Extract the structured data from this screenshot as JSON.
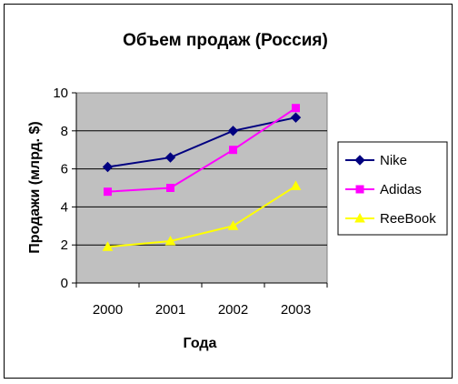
{
  "chart_data": {
    "type": "line",
    "title": "Объем продаж (Россия)",
    "xlabel": "Года",
    "ylabel": "Продажи (млрд. $)",
    "categories": [
      "2000",
      "2001",
      "2002",
      "2003"
    ],
    "ylim": [
      0,
      10
    ],
    "yticks": [
      "0",
      "2",
      "4",
      "6",
      "8",
      "10"
    ],
    "grid": true,
    "legend_position": "right",
    "plot_background": "#c0c0c0",
    "series": [
      {
        "name": "Nike",
        "color": "#000080",
        "marker": "diamond",
        "values": [
          6.1,
          6.6,
          8.0,
          8.7
        ]
      },
      {
        "name": "Adidas",
        "color": "#ff00ff",
        "marker": "square",
        "values": [
          4.8,
          5.0,
          7.0,
          9.2
        ]
      },
      {
        "name": "ReeBook",
        "color": "#ffff00",
        "marker": "triangle",
        "values": [
          1.9,
          2.2,
          3.0,
          5.1
        ]
      }
    ]
  }
}
